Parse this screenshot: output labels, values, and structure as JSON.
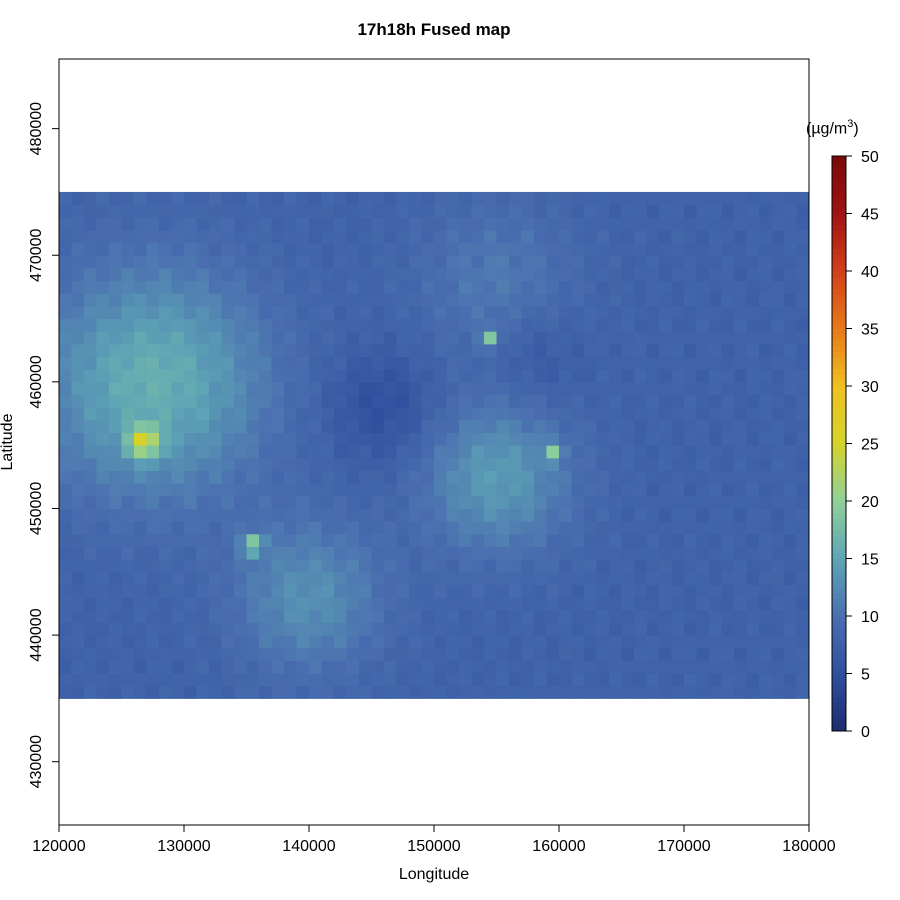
{
  "chart_data": {
    "type": "heatmap",
    "title": "17h18h Fused map",
    "xlabel": "Longitude",
    "ylabel": "Latitude",
    "xlim": [
      120000,
      180000
    ],
    "ylim": [
      425000,
      485500
    ],
    "x_ticks": [
      120000,
      130000,
      140000,
      150000,
      160000,
      170000,
      180000
    ],
    "y_ticks": [
      430000,
      440000,
      450000,
      460000,
      470000,
      480000
    ],
    "data_extent": {
      "x": [
        120000,
        180000
      ],
      "y": [
        435000,
        475000
      ]
    },
    "grid": false,
    "baseline_value": 8,
    "hotspots": [
      {
        "x": 127500,
        "y": 460000,
        "value": 16,
        "radius": 9000
      },
      {
        "x": 126800,
        "y": 455300,
        "value": 20,
        "radius": 1200
      },
      {
        "x": 140000,
        "y": 443000,
        "value": 13,
        "radius": 6000
      },
      {
        "x": 155000,
        "y": 452500,
        "value": 14,
        "radius": 6000
      },
      {
        "x": 155000,
        "y": 468000,
        "value": 11,
        "radius": 6500
      },
      {
        "x": 146000,
        "y": 458000,
        "value": 5,
        "radius": 4500
      },
      {
        "x": 158000,
        "y": 462000,
        "value": 6,
        "radius": 4000
      },
      {
        "x": 135500,
        "y": 447200,
        "value": 18,
        "radius": 800
      },
      {
        "x": 154500,
        "y": 463500,
        "value": 17,
        "radius": 700
      },
      {
        "x": 159500,
        "y": 454500,
        "value": 16,
        "radius": 700
      }
    ],
    "colorbar": {
      "unit_label": "(µg/m",
      "unit_exponent": "3",
      "unit_close": ")",
      "min": 0,
      "max": 50,
      "ticks": [
        0,
        5,
        10,
        15,
        20,
        25,
        30,
        35,
        40,
        45,
        50
      ],
      "colors": [
        "#1e2c6e",
        "#2f4f9e",
        "#4a6fb0",
        "#5ea5b5",
        "#8fd09a",
        "#d4d42a",
        "#f0c020",
        "#e87a1a",
        "#d2401a",
        "#a01212",
        "#7a0a0a"
      ]
    }
  }
}
